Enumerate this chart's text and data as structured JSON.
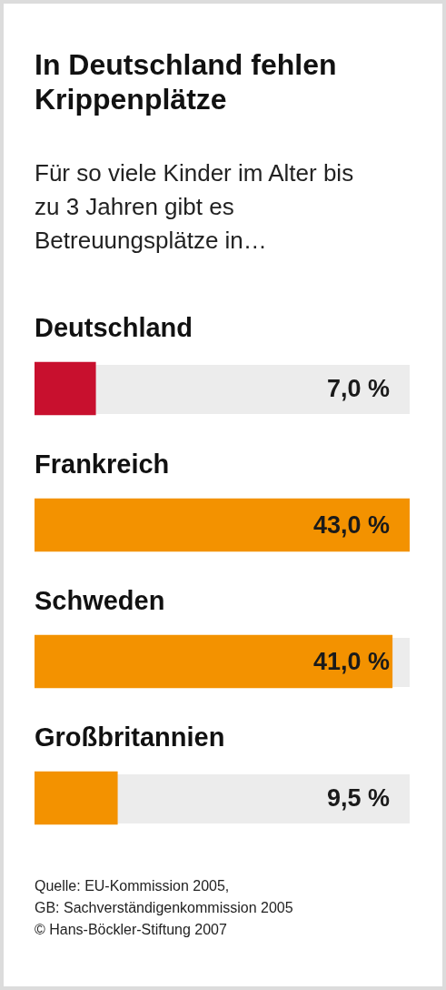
{
  "chart_data": {
    "type": "bar",
    "orientation": "horizontal",
    "title": "In Deutschland fehlen Krippenplätze",
    "subtitle": "Für so viele Kinder im Alter bis zu 3 Jahren gibt es Betreuungsplätze in…",
    "categories": [
      "Deutschland",
      "Frankreich",
      "Schweden",
      "Großbritannien"
    ],
    "values": [
      7.0,
      43.0,
      41.0,
      9.5
    ],
    "colors": [
      "#c8102e",
      "#f39200",
      "#f39200",
      "#f39200"
    ],
    "value_labels": [
      "7,0 %",
      "43,0 %",
      "41,0 %",
      "9,5 %"
    ],
    "xlim": [
      0,
      43
    ],
    "tick_labels": "y",
    "legend": false,
    "annotations": [
      "Quelle: EU-Kommission 2005,",
      "GB: Sachverständigenkommission 2005",
      "© Hans-Böckler-Stiftung 2007"
    ]
  }
}
